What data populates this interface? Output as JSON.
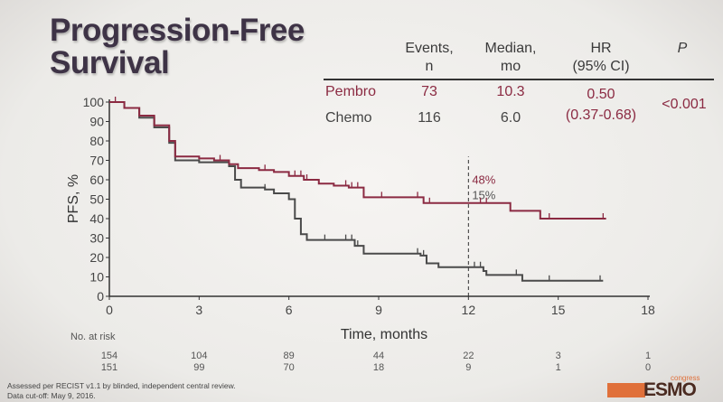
{
  "title_line1": "Progression-Free",
  "title_line2": "Survival",
  "table": {
    "headers": [
      [
        "Events,",
        "n"
      ],
      [
        "Median,",
        "mo"
      ],
      [
        "HR",
        "(95% CI)"
      ],
      [
        "P",
        ""
      ]
    ],
    "rows": [
      {
        "arm": "Pembro",
        "events": "73",
        "median": "10.3"
      },
      {
        "arm": "Chemo",
        "events": "116",
        "median": "6.0"
      }
    ],
    "hr": "0.50",
    "ci": "(0.37-0.68)",
    "p": "<0.001"
  },
  "colors": {
    "pembro": "#8b2a42",
    "chemo": "#4a4a4a"
  },
  "chart_data": {
    "type": "line",
    "xlabel": "Time, months",
    "ylabel": "PFS, %",
    "xlim": [
      0,
      18
    ],
    "ylim": [
      0,
      100
    ],
    "xticks": [
      0,
      3,
      6,
      9,
      12,
      15,
      18
    ],
    "yticks": [
      0,
      10,
      20,
      30,
      40,
      50,
      60,
      70,
      80,
      90,
      100
    ],
    "series": [
      {
        "name": "Pembro",
        "color": "#8b2a42",
        "x": [
          0,
          0.5,
          1,
          1.5,
          2,
          2.2,
          3,
          3.5,
          4,
          4.3,
          5,
          5.5,
          6,
          6.5,
          7,
          7.5,
          8,
          8.5,
          10.5,
          13.4,
          14.4,
          16.6
        ],
        "y": [
          100,
          97,
          93,
          88,
          80,
          72,
          71,
          70,
          68,
          66,
          65,
          64,
          62,
          60,
          58,
          57,
          56,
          51,
          48,
          44,
          40,
          40
        ],
        "censor_x": [
          0.2,
          3.7,
          5.2,
          6.2,
          6.4,
          6.6,
          7.9,
          8.1,
          8.3,
          9.1,
          10.3,
          10.5,
          10.7,
          12.4,
          12.6,
          14.7,
          16.5
        ]
      },
      {
        "name": "Chemo",
        "color": "#4a4a4a",
        "x": [
          0,
          0.5,
          1,
          1.5,
          2,
          2.2,
          3,
          4,
          4.2,
          4.4,
          5.2,
          5.5,
          6,
          6.2,
          6.4,
          6.6,
          8,
          8.2,
          8.5,
          10.4,
          10.6,
          11,
          12.5,
          12.6,
          13.8,
          16.5
        ],
        "y": [
          100,
          97,
          92,
          87,
          79,
          70,
          69,
          67,
          60,
          56,
          55,
          53,
          50,
          40,
          32,
          29,
          29,
          26,
          22,
          21,
          17,
          15,
          13,
          11,
          8,
          8
        ],
        "censor_x": [
          4.4,
          5.2,
          7.2,
          7.9,
          8.1,
          8.3,
          10.3,
          10.5,
          12.2,
          12.4,
          13.6,
          14.7,
          16.4
        ]
      }
    ],
    "annotation": {
      "x": 12,
      "labels": [
        "48%",
        "15%"
      ]
    },
    "risk_table": {
      "label": "No. at risk",
      "pembro": [
        "154",
        "104",
        "89",
        "44",
        "22",
        "3",
        "1"
      ],
      "chemo": [
        "151",
        "99",
        "70",
        "18",
        "9",
        "1",
        "0"
      ]
    }
  },
  "footnotes": [
    "Assessed per RECIST v1.1 by blinded, independent central review.",
    "Data cut-off: May 9, 2016."
  ],
  "logo": {
    "text": "ESMO",
    "sub": "congress"
  }
}
